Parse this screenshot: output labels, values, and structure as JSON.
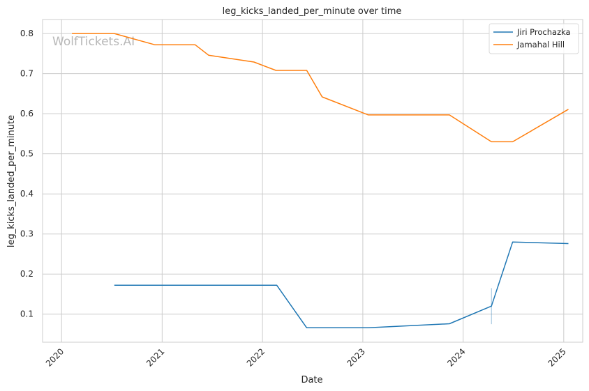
{
  "chart_data": {
    "type": "line",
    "title": "leg_kicks_landed_per_minute over time",
    "xlabel": "Date",
    "ylabel": "leg_kicks_landed_per_minute",
    "watermark": "WolfTickets.AI",
    "x_axis_type": "date",
    "xlim": [
      "2019-10-24",
      "2025-03-11"
    ],
    "ylim": [
      0.03,
      0.835
    ],
    "x_ticks": [
      "2020",
      "2021",
      "2022",
      "2023",
      "2024",
      "2025"
    ],
    "y_ticks": [
      "0.1",
      "0.2",
      "0.3",
      "0.4",
      "0.5",
      "0.6",
      "0.7",
      "0.8"
    ],
    "grid": true,
    "legend_position": "top-right",
    "series": [
      {
        "name": "Jiri Prochazka",
        "color": "#1f77b4",
        "points": [
          {
            "x": "2020-07-11",
            "y": 0.172
          },
          {
            "x": "2022-02-22",
            "y": 0.172
          },
          {
            "x": "2022-06-11",
            "y": 0.066
          },
          {
            "x": "2023-01-21",
            "y": 0.066
          },
          {
            "x": "2023-11-12",
            "y": 0.076
          },
          {
            "x": "2024-04-13",
            "y": 0.12
          },
          {
            "x": "2024-06-29",
            "y": 0.28
          },
          {
            "x": "2025-01-18",
            "y": 0.276
          }
        ]
      },
      {
        "name": "Jamahal Hill",
        "color": "#ff7f0e",
        "points": [
          {
            "x": "2020-02-08",
            "y": 0.8
          },
          {
            "x": "2020-07-11",
            "y": 0.8
          },
          {
            "x": "2020-12-05",
            "y": 0.772
          },
          {
            "x": "2021-05-01",
            "y": 0.772
          },
          {
            "x": "2021-06-19",
            "y": 0.746
          },
          {
            "x": "2021-12-01",
            "y": 0.729
          },
          {
            "x": "2022-02-19",
            "y": 0.708
          },
          {
            "x": "2022-06-11",
            "y": 0.708
          },
          {
            "x": "2022-08-06",
            "y": 0.642
          },
          {
            "x": "2023-01-21",
            "y": 0.597
          },
          {
            "x": "2023-11-12",
            "y": 0.597
          },
          {
            "x": "2024-04-13",
            "y": 0.53
          },
          {
            "x": "2024-06-29",
            "y": 0.53
          },
          {
            "x": "2025-01-18",
            "y": 0.611
          }
        ]
      }
    ],
    "annotations": [
      {
        "type": "vertical-marker",
        "x": "2024-04-13",
        "y_range": [
          0.075,
          0.165
        ],
        "color": "#1f77b4"
      }
    ]
  }
}
